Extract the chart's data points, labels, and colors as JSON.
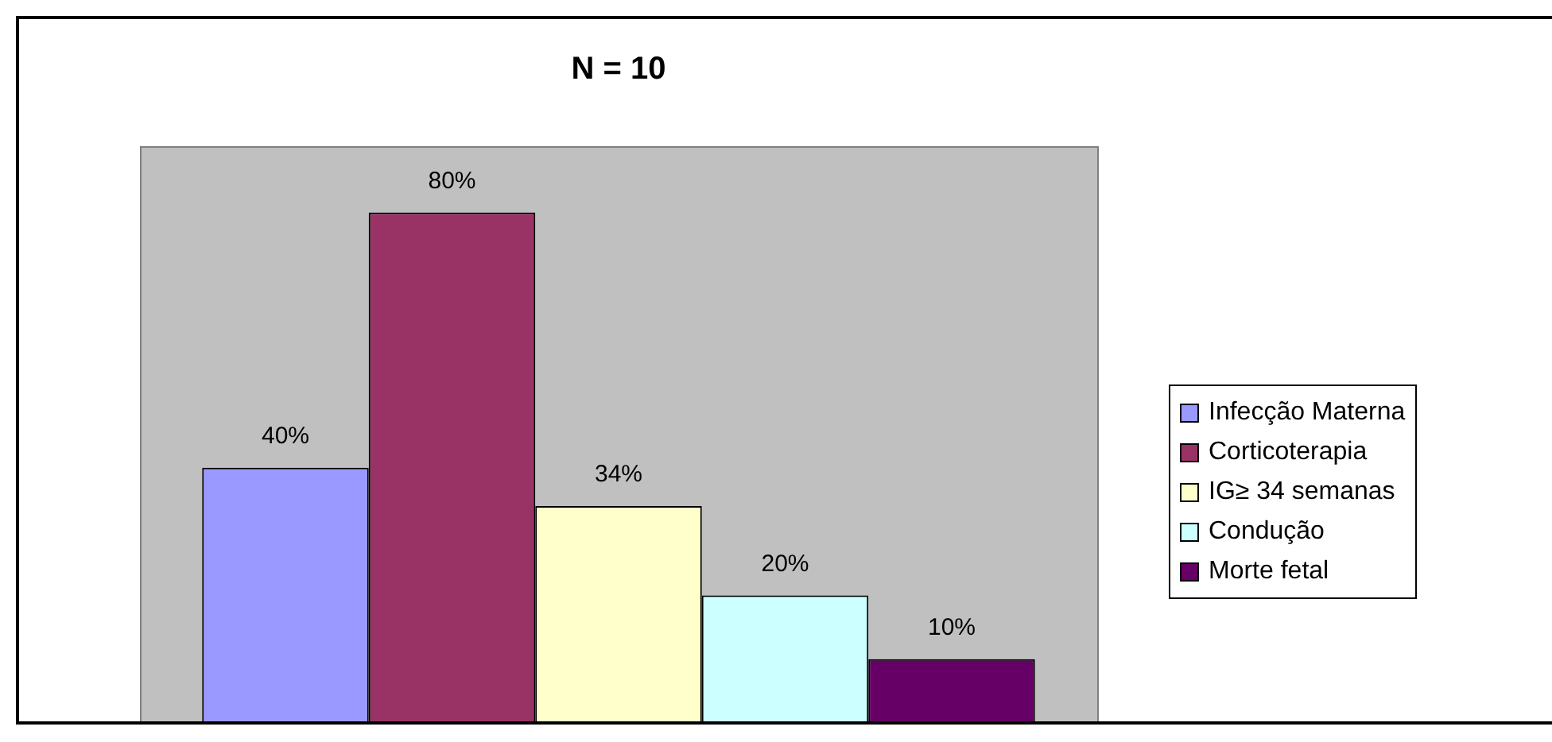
{
  "chart_data": {
    "type": "bar",
    "title": "N = 10",
    "categories": [
      null
    ],
    "series": [
      {
        "name": "Infecção Materna",
        "color": "#9999ff",
        "values": [
          40
        ],
        "value_labels": [
          "40%"
        ]
      },
      {
        "name": "Corticoterapia",
        "color": "#993366",
        "values": [
          80
        ],
        "value_labels": [
          "80%"
        ]
      },
      {
        "name": "IG≥ 34 semanas",
        "color": "#ffffcc",
        "values": [
          34
        ],
        "value_labels": [
          "34%"
        ]
      },
      {
        "name": "Condução",
        "color": "#ccffff",
        "values": [
          20
        ],
        "value_labels": [
          "20%"
        ]
      },
      {
        "name": "Morte fetal",
        "color": "#660066",
        "values": [
          10
        ],
        "value_labels": [
          "10%"
        ]
      }
    ],
    "legend": "right"
  }
}
